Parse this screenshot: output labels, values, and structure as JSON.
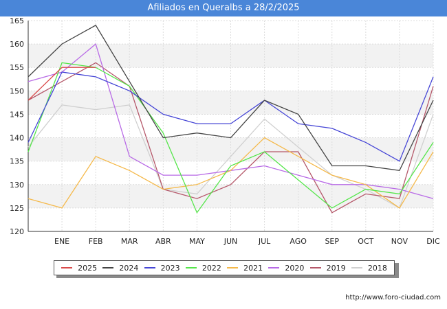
{
  "header": {
    "title": "Afiliados en Queralbs a 28/2/2025"
  },
  "footer": {
    "source": "http://www.foro-ciudad.com"
  },
  "colors": {
    "title_bg": "#4a86d8",
    "plot_band": "#f2f2f2",
    "grid": "#dcdcdc"
  },
  "chart_data": {
    "type": "line",
    "title": "Afiliados en Queralbs a 28/2/2025",
    "xlabel": "",
    "ylabel": "",
    "categories": [
      "",
      "ENE",
      "FEB",
      "MAR",
      "ABR",
      "MAY",
      "JUN",
      "JUL",
      "AGO",
      "SEP",
      "OCT",
      "NOV",
      "DIC"
    ],
    "yticks": [
      120,
      125,
      130,
      135,
      140,
      145,
      150,
      155,
      160,
      165
    ],
    "ylim": [
      120,
      165
    ],
    "grid": true,
    "legend_position": "bottom",
    "series": [
      {
        "name": "2018",
        "color": "#d0d0d0",
        "values": [
          138,
          147,
          146,
          147,
          129,
          128,
          136,
          144,
          138,
          132,
          129,
          125,
          145
        ]
      },
      {
        "name": "2019",
        "color": "#b5586a",
        "values": [
          148,
          152,
          156,
          151,
          129,
          127,
          130,
          137,
          137,
          124,
          128,
          127,
          151
        ]
      },
      {
        "name": "2020",
        "color": "#b86ae6",
        "values": [
          152,
          154,
          160,
          136,
          132,
          132,
          133,
          134,
          132,
          130,
          130,
          129,
          127
        ]
      },
      {
        "name": "2021",
        "color": "#f5b94a",
        "values": [
          127,
          125,
          136,
          133,
          129,
          130,
          133,
          140,
          136,
          132,
          130,
          125,
          137
        ]
      },
      {
        "name": "2022",
        "color": "#55e64a",
        "values": [
          137,
          156,
          155,
          151,
          141,
          124,
          134,
          137,
          131,
          125,
          129,
          128,
          139
        ]
      },
      {
        "name": "2023",
        "color": "#4646d6",
        "values": [
          139,
          154,
          153,
          150,
          145,
          143,
          143,
          148,
          143,
          142,
          139,
          135,
          153
        ]
      },
      {
        "name": "2024",
        "color": "#444444",
        "values": [
          153,
          160,
          164,
          152,
          140,
          141,
          140,
          148,
          145,
          134,
          134,
          133,
          148
        ]
      },
      {
        "name": "2025",
        "color": "#d94a4a",
        "values": [
          148,
          155,
          155,
          null,
          null,
          null,
          null,
          null,
          null,
          null,
          null,
          null,
          null
        ]
      }
    ],
    "legend_order": [
      "2025",
      "2024",
      "2023",
      "2022",
      "2021",
      "2020",
      "2019",
      "2018"
    ]
  }
}
